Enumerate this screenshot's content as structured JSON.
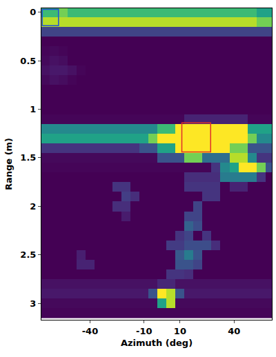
{
  "chart_data": {
    "type": "heatmap",
    "x_label": "Azimuth (deg)",
    "y_label": "Range (m)",
    "xlim": [
      -67,
      61
    ],
    "xticks": [
      -40,
      -10,
      10,
      40
    ],
    "ylim": [
      3.17,
      -0.04
    ],
    "yticks": [
      0,
      0.5,
      1,
      1.5,
      2,
      2.5,
      3
    ],
    "x": [
      -65,
      -60,
      -55,
      -50,
      -45,
      -40,
      -35,
      -30,
      -25,
      -20,
      -15,
      -10,
      -5,
      0,
      5,
      10,
      15,
      20,
      25,
      30,
      35,
      40,
      45,
      50,
      55,
      60
    ],
    "y": [
      0,
      0.1,
      0.2,
      0.3,
      0.4,
      0.5,
      0.6,
      0.7,
      0.8,
      0.9,
      1.0,
      1.1,
      1.2,
      1.3,
      1.4,
      1.5,
      1.6,
      1.7,
      1.8,
      1.9,
      2.0,
      2.1,
      2.2,
      2.3,
      2.4,
      2.5,
      2.6,
      2.7,
      2.8,
      2.9,
      3.0,
      3.1
    ],
    "cells": [
      [
        7,
        7,
        8,
        7,
        7,
        7,
        7,
        7,
        7,
        7,
        7,
        7,
        7,
        7,
        7,
        7,
        7,
        7,
        7,
        7,
        7,
        7,
        7,
        7,
        6,
        6
      ],
      [
        9,
        9,
        9,
        9,
        9,
        9,
        9,
        9,
        9,
        9,
        9,
        9,
        9,
        9,
        9,
        9,
        9,
        9,
        9,
        9,
        9,
        9,
        9,
        9,
        8,
        8
      ],
      [
        2.5,
        2.5,
        2.5,
        2.5,
        2.5,
        2.5,
        2.5,
        2.5,
        2.5,
        2.5,
        2.5,
        2.5,
        2.5,
        2.5,
        2.5,
        2.5,
        2.5,
        2.5,
        2.5,
        2.5,
        2.5,
        2.5,
        2.5,
        2.5,
        2.5,
        2.5
      ],
      [
        0.6,
        0.6,
        0.6,
        0.6,
        0.6,
        0.6,
        0.6,
        0.6,
        0.6,
        0.6,
        0.6,
        0.6,
        0.6,
        0.6,
        0.6,
        0.6,
        0.6,
        0.6,
        0.6,
        0.6,
        0.6,
        0.6,
        0.6,
        0.6,
        0.6,
        0.6
      ],
      [
        0.7,
        0.8,
        0.7,
        0.6,
        0.6,
        0.6,
        0.6,
        0.6,
        0.6,
        0.6,
        0.6,
        0.6,
        0.6,
        0.6,
        0.6,
        0.6,
        0.6,
        0.6,
        0.6,
        0.6,
        0.6,
        0.6,
        0.6,
        0.6,
        0.6,
        0.6
      ],
      [
        0.8,
        1.0,
        0.9,
        0.6,
        0.6,
        0.6,
        0.6,
        0.6,
        0.6,
        0.6,
        0.6,
        0.6,
        0.6,
        0.6,
        0.6,
        0.6,
        0.6,
        0.6,
        0.6,
        0.6,
        0.6,
        0.6,
        0.6,
        0.6,
        0.6,
        0.6
      ],
      [
        1.0,
        1.2,
        1.2,
        1.0,
        0.7,
        0.6,
        0.6,
        0.6,
        0.6,
        0.6,
        0.6,
        0.6,
        0.6,
        0.6,
        0.6,
        0.6,
        0.6,
        0.6,
        0.6,
        0.6,
        0.6,
        0.6,
        0.6,
        0.6,
        0.6,
        0.6
      ],
      [
        0.8,
        1.0,
        0.9,
        0.7,
        0.6,
        0.6,
        0.6,
        0.6,
        0.6,
        0.6,
        0.6,
        0.6,
        0.6,
        0.6,
        0.6,
        0.6,
        0.6,
        0.6,
        0.6,
        0.6,
        0.6,
        0.6,
        0.6,
        0.6,
        0.6,
        0.6
      ],
      [
        0.6,
        0.6,
        0.6,
        0.6,
        0.6,
        0.6,
        0.6,
        0.6,
        0.6,
        0.6,
        0.6,
        0.6,
        0.6,
        0.6,
        0.6,
        0.6,
        0.6,
        0.6,
        0.6,
        0.6,
        0.6,
        0.6,
        0.6,
        0.6,
        0.6,
        0.6
      ],
      [
        0.6,
        0.6,
        0.6,
        0.6,
        0.6,
        0.6,
        0.6,
        0.6,
        0.6,
        0.6,
        0.6,
        0.6,
        0.6,
        0.6,
        0.6,
        0.6,
        0.6,
        0.6,
        0.6,
        0.6,
        0.6,
        0.6,
        0.6,
        0.6,
        0.6,
        0.6
      ],
      [
        0.6,
        0.6,
        0.6,
        0.6,
        0.6,
        0.6,
        0.6,
        0.6,
        0.6,
        0.6,
        0.6,
        0.6,
        0.6,
        0.6,
        0.6,
        0.6,
        0.6,
        0.6,
        0.6,
        0.6,
        0.6,
        0.6,
        0.6,
        0.6,
        0.6,
        0.6
      ],
      [
        0.7,
        0.7,
        0.7,
        0.7,
        0.7,
        0.7,
        0.7,
        0.7,
        0.7,
        0.7,
        0.7,
        0.7,
        0.7,
        0.7,
        0.7,
        0.7,
        1.5,
        1.5,
        1.5,
        1.5,
        1.5,
        1.5,
        1.5,
        0.7,
        0.7,
        0.7
      ],
      [
        5,
        5,
        5,
        5,
        5,
        5,
        5,
        5,
        5,
        5,
        5,
        5,
        5,
        7,
        7,
        10,
        10,
        10,
        10,
        10,
        10,
        10,
        10,
        6,
        6,
        6
      ],
      [
        6,
        6,
        6,
        6,
        6,
        6,
        6,
        6,
        6,
        6,
        6,
        6,
        8,
        10,
        10,
        10,
        10,
        10,
        10,
        10,
        10,
        10,
        10,
        8,
        5,
        5
      ],
      [
        2,
        2,
        2,
        2,
        2,
        2,
        2,
        2,
        2,
        2,
        2,
        3,
        3,
        6,
        6,
        10,
        10,
        10,
        10,
        10,
        10,
        8,
        8,
        3,
        3,
        3
      ],
      [
        0.8,
        0.8,
        0.8,
        0.8,
        0.8,
        0.8,
        0.8,
        0.8,
        0.8,
        0.8,
        0.8,
        0.8,
        0.8,
        3,
        3,
        3,
        8,
        8,
        4,
        4,
        4,
        9,
        9,
        5,
        2,
        2
      ],
      [
        0.7,
        0.7,
        0.7,
        0.7,
        0.7,
        0.7,
        0.7,
        0.7,
        0.7,
        0.7,
        0.7,
        0.7,
        0.7,
        0.7,
        0.7,
        0.7,
        0.7,
        0.7,
        0.7,
        2,
        5,
        6,
        10,
        10,
        8,
        3
      ],
      [
        0.6,
        0.6,
        0.6,
        0.6,
        0.6,
        0.6,
        0.6,
        0.6,
        0.6,
        0.6,
        0.6,
        0.6,
        0.6,
        0.6,
        0.6,
        0.6,
        1.8,
        1.8,
        1.8,
        1.8,
        4.5,
        4.5,
        4.5,
        4.5,
        2,
        0.6
      ],
      [
        0.6,
        0.6,
        0.6,
        0.6,
        0.6,
        0.6,
        0.6,
        0.6,
        2,
        2,
        0.6,
        0.6,
        0.6,
        0.6,
        0.6,
        0.6,
        2,
        2,
        2,
        2,
        0.6,
        1.5,
        1.5,
        0.6,
        0.6,
        0.6
      ],
      [
        0.6,
        0.6,
        0.6,
        0.6,
        0.6,
        0.6,
        0.6,
        0.6,
        0.6,
        2.3,
        1.8,
        0.6,
        0.6,
        0.6,
        0.6,
        0.6,
        0.6,
        0.6,
        2,
        2,
        0.6,
        0.6,
        0.6,
        0.6,
        0.6,
        0.6
      ],
      [
        0.6,
        0.6,
        0.6,
        0.6,
        0.6,
        0.6,
        0.6,
        0.6,
        1.8,
        1.8,
        0.6,
        0.6,
        0.6,
        0.6,
        0.6,
        0.6,
        0.6,
        2.5,
        0.6,
        0.6,
        0.6,
        0.6,
        0.6,
        0.6,
        0.6,
        0.6
      ],
      [
        0.6,
        0.6,
        0.6,
        0.6,
        0.6,
        0.6,
        0.6,
        0.6,
        0.6,
        1.3,
        0.6,
        0.6,
        0.6,
        0.6,
        0.6,
        0.6,
        2.5,
        2.5,
        0.6,
        0.6,
        0.6,
        0.6,
        0.6,
        0.6,
        0.6,
        0.6
      ],
      [
        0.6,
        0.6,
        0.6,
        0.6,
        0.6,
        0.6,
        0.6,
        0.6,
        0.6,
        0.6,
        0.6,
        0.6,
        0.6,
        0.6,
        0.6,
        0.6,
        3.5,
        2.8,
        0.6,
        0.6,
        0.6,
        0.6,
        0.6,
        0.6,
        0.6,
        0.6
      ],
      [
        0.6,
        0.6,
        0.6,
        0.6,
        0.6,
        0.6,
        0.6,
        0.6,
        0.6,
        0.6,
        0.6,
        0.6,
        0.6,
        0.6,
        0.6,
        2,
        2.5,
        0.6,
        2,
        0.6,
        0.6,
        0.6,
        0.6,
        0.6,
        0.6,
        0.6
      ],
      [
        0.6,
        0.6,
        0.6,
        0.6,
        0.6,
        0.6,
        0.6,
        0.6,
        0.6,
        0.6,
        0.6,
        0.6,
        0.6,
        0.6,
        2.2,
        2.2,
        2.8,
        2.8,
        2.8,
        1.8,
        0.6,
        0.6,
        0.6,
        0.6,
        0.6,
        0.6
      ],
      [
        0.6,
        0.6,
        0.6,
        0.6,
        1.4,
        0.6,
        0.6,
        0.6,
        0.6,
        0.6,
        0.6,
        0.6,
        0.6,
        0.6,
        0.6,
        3.2,
        4.5,
        3,
        0.6,
        0.6,
        0.6,
        0.6,
        0.6,
        0.6,
        0.6,
        0.6
      ],
      [
        0.6,
        0.6,
        0.6,
        0.6,
        1.5,
        1.5,
        0.6,
        0.6,
        0.6,
        0.6,
        0.6,
        0.6,
        0.6,
        0.6,
        0.6,
        3,
        3,
        2.5,
        0.6,
        0.6,
        0.6,
        0.6,
        0.6,
        0.6,
        0.6,
        0.6
      ],
      [
        0.6,
        0.6,
        0.6,
        0.6,
        0.6,
        0.6,
        0.6,
        0.6,
        0.6,
        0.6,
        0.6,
        0.6,
        0.6,
        0.6,
        2,
        2,
        1.8,
        0.6,
        0.6,
        0.6,
        0.6,
        0.6,
        0.6,
        0.6,
        0.6,
        0.6
      ],
      [
        1.0,
        1.0,
        1.0,
        1.0,
        1.0,
        1.0,
        1.0,
        1.0,
        1.0,
        1.0,
        1.0,
        1.0,
        1.0,
        1.6,
        1.6,
        1.0,
        1.0,
        1.0,
        1.0,
        1.0,
        1.0,
        1.0,
        1.0,
        1.0,
        1.0,
        1.0
      ],
      [
        1.2,
        1.2,
        1.2,
        1.2,
        1.2,
        1.2,
        1.2,
        1.2,
        1.2,
        1.2,
        1.2,
        1.2,
        3,
        10,
        9,
        3,
        1.2,
        1.2,
        1.2,
        1.2,
        1.2,
        1.2,
        1.2,
        1.2,
        1.2,
        1.2
      ],
      [
        0.8,
        0.8,
        0.8,
        0.8,
        0.8,
        0.8,
        0.8,
        0.8,
        0.8,
        0.8,
        0.8,
        0.8,
        0.8,
        6,
        9,
        0.8,
        0.8,
        0.8,
        0.8,
        0.8,
        0.8,
        0.8,
        0.8,
        0.8,
        0.8,
        0.8
      ],
      [
        0.7,
        0.7,
        0.7,
        0.7,
        0.7,
        0.7,
        0.7,
        0.7,
        0.7,
        0.7,
        0.7,
        0.7,
        0.7,
        0.7,
        0.7,
        0.7,
        0.7,
        0.7,
        0.7,
        0.7,
        0.7,
        0.7,
        0.7,
        0.7,
        0.7,
        0.7
      ]
    ],
    "boxes": [
      {
        "x0": -66.5,
        "x1": -57.5,
        "y0": -0.03,
        "y1": 0.14,
        "color": "#1f4fd8"
      },
      {
        "x0": 11,
        "x1": 27,
        "y0": 1.14,
        "y1": 1.44,
        "color": "#e0302a"
      }
    ]
  }
}
